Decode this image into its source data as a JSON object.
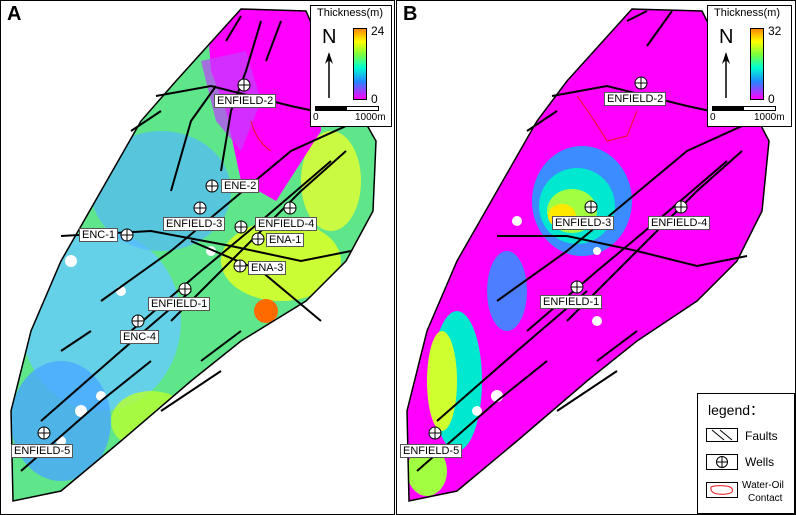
{
  "panels": [
    {
      "letter": "A",
      "scale": {
        "title": "Thickness(m)",
        "max": "24",
        "min": "0",
        "north": "N",
        "bar_start": "0",
        "bar_end": "1000m"
      },
      "wells": [
        "ENFIELD-2",
        "ENE-2",
        "ENFIELD-3",
        "ENFIELD-4",
        "ENC-1",
        "ENA-1",
        "ENA-3",
        "ENFIELD-1",
        "ENC-4",
        "ENFIELD-5"
      ]
    },
    {
      "letter": "B",
      "scale": {
        "title": "Thickness(m)",
        "max": "32",
        "min": "0",
        "north": "N",
        "bar_start": "0",
        "bar_end": "1000m"
      },
      "wells": [
        "ENFIELD-2",
        "ENFIELD-3",
        "ENFIELD-4",
        "ENFIELD-1",
        "ENFIELD-5"
      ]
    }
  ],
  "legend": {
    "title": "legend：",
    "items": [
      "Faults",
      "Wells",
      "Water-Oil",
      "Contact"
    ]
  },
  "colors": {
    "fault": "#000000",
    "contact": "#e8141e",
    "background": "#ff00ff"
  }
}
